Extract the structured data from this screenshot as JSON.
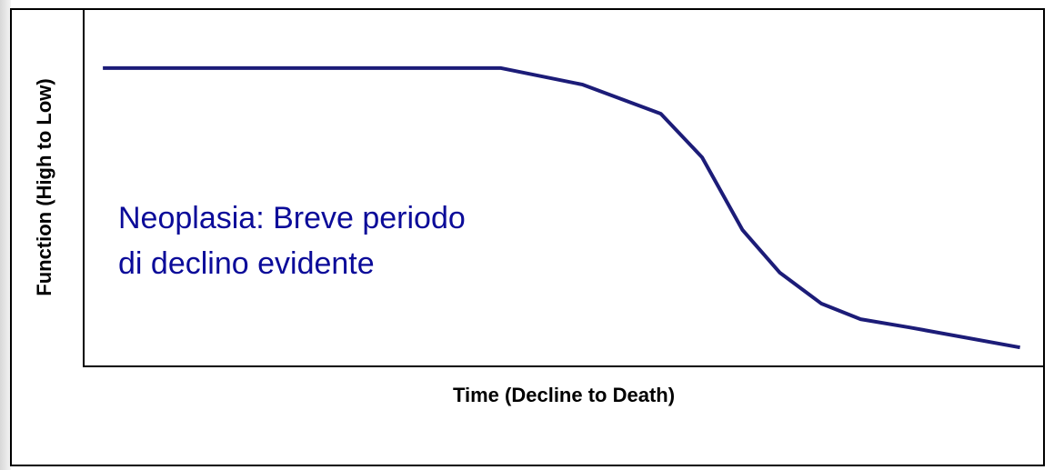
{
  "chart_data": {
    "type": "line",
    "x_label": "Time (Decline to Death)",
    "y_label": "Function (High to Low)",
    "annotation": [
      "Neoplasia: Breve periodo",
      "di declino evidente"
    ],
    "x": [
      2.0,
      43.4,
      51.9,
      60.1,
      64.4,
      68.6,
      72.5,
      76.8,
      80.9,
      86.0,
      97.5
    ],
    "series": [
      {
        "color": "#1c1c78",
        "values": [
          83.5,
          83.5,
          78.9,
          70.7,
          58.5,
          38.2,
          26.2,
          17.6,
          13.2,
          10.9,
          5.3
        ]
      }
    ],
    "xlim": [
      0,
      100
    ],
    "ylim": [
      0,
      100
    ],
    "annotation_color": "#0b0b99"
  }
}
